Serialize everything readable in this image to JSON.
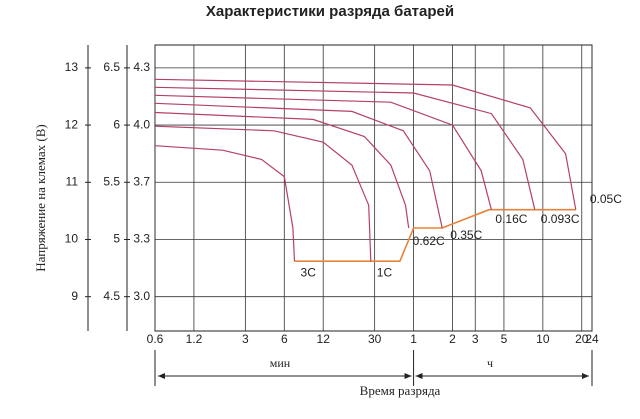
{
  "chart_data": {
    "type": "line",
    "title": "Характеристики разряда батарей",
    "y_label": "Напряжение на клемах (В)",
    "x_label": "Время разряда",
    "x_unit_labels": [
      "мин",
      "ч"
    ],
    "x_log": true,
    "grid": true,
    "xlim": [
      0.6,
      1440
    ],
    "xticks": [
      0.6,
      1.2,
      3,
      6,
      12,
      30,
      {
        "value": 60,
        "label": "1"
      },
      {
        "value": 120,
        "label": "2"
      },
      {
        "value": 180,
        "label": "3"
      },
      {
        "value": 300,
        "label": "5"
      },
      {
        "value": 600,
        "label": "10"
      },
      {
        "value": 1200,
        "label": "20"
      },
      {
        "value": 1440,
        "label": "24"
      }
    ],
    "ylim": [
      4.2,
      6.7
    ],
    "yticks": [
      4.5,
      5.0,
      5.5,
      6.0,
      6.5
    ],
    "y2lim": [
      8.4,
      13.4
    ],
    "y2ticks": [
      9,
      10,
      11,
      12,
      13
    ],
    "y3_labels": [
      "3.0",
      "3.3",
      "3.7",
      "4.0",
      "4.3"
    ],
    "series": [
      {
        "name": "3C",
        "color": "#b5406a",
        "x": [
          0.6,
          2,
          4,
          6,
          7,
          7.2
        ],
        "values": [
          5.82,
          5.78,
          5.7,
          5.55,
          5.1,
          4.81
        ]
      },
      {
        "name": "1C",
        "color": "#b5406a",
        "x": [
          0.6,
          5,
          12,
          20,
          27,
          28
        ],
        "values": [
          5.99,
          5.95,
          5.85,
          5.65,
          5.3,
          4.81
        ]
      },
      {
        "name": "0.62C",
        "color": "#b5406a",
        "x": [
          0.6,
          10,
          25,
          40,
          52,
          55
        ],
        "values": [
          6.11,
          6.05,
          5.9,
          5.65,
          5.3,
          5.1
        ]
      },
      {
        "name": "0.35C",
        "color": "#b5406a",
        "x": [
          0.6,
          20,
          50,
          80,
          100
        ],
        "values": [
          6.19,
          6.12,
          5.95,
          5.6,
          5.1
        ]
      },
      {
        "name": "0.16C",
        "color": "#b5406a",
        "x": [
          0.6,
          40,
          120,
          200,
          240
        ],
        "values": [
          6.26,
          6.2,
          6.0,
          5.6,
          5.26
        ]
      },
      {
        "name": "0.093C",
        "color": "#b5406a",
        "x": [
          0.6,
          60,
          240,
          420,
          520
        ],
        "values": [
          6.33,
          6.28,
          6.1,
          5.7,
          5.26
        ]
      },
      {
        "name": "0.05C",
        "color": "#b5406a",
        "x": [
          0.6,
          120,
          480,
          900,
          1080
        ],
        "values": [
          6.4,
          6.35,
          6.15,
          5.75,
          5.26
        ]
      }
    ],
    "label_color": "#2020b0",
    "cutoff": {
      "color": "#e8823a",
      "x": [
        7.2,
        47,
        60,
        100,
        230,
        1080
      ],
      "values": [
        4.81,
        4.81,
        5.1,
        5.1,
        5.26,
        5.26
      ]
    }
  }
}
